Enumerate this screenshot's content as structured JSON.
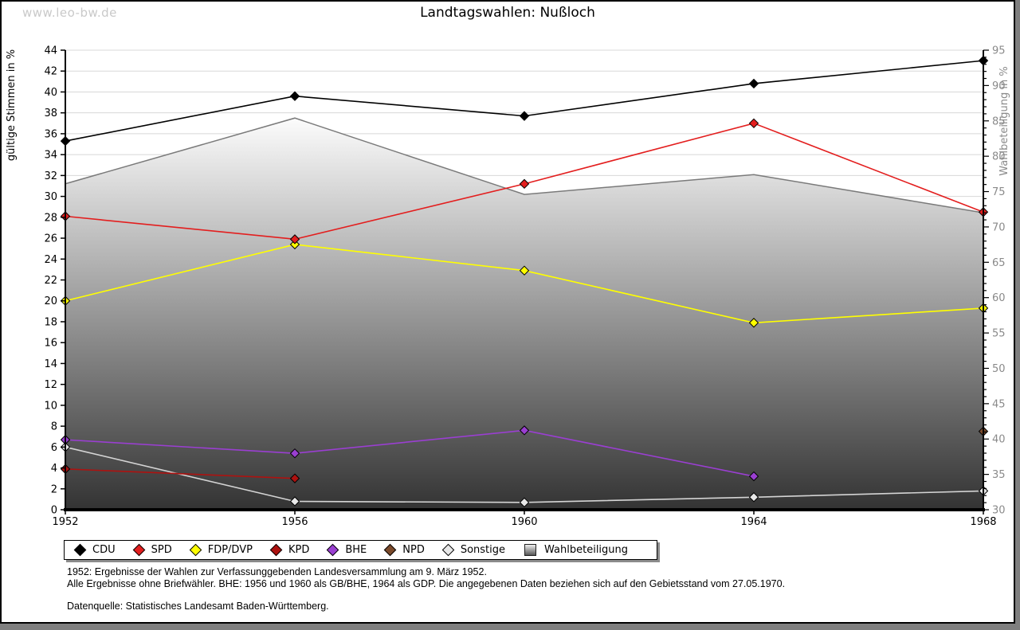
{
  "watermark": "www.leo-bw.de",
  "chart_data": {
    "type": "line",
    "title": "Landtagswahlen: Nußloch",
    "x_categories": [
      "1952",
      "1956",
      "1960",
      "1964",
      "1968"
    ],
    "ylabel_left": "gültige Stimmen in %",
    "ylabel_right": "Wahlbeteiligung in %",
    "ylim_left": [
      0,
      44
    ],
    "ytick_step_left": 2,
    "ylim_right": [
      30,
      95
    ],
    "ytick_step_right": 5,
    "ytick_minor_step_right": 1,
    "grid": true,
    "legend_position": "bottom",
    "series": [
      {
        "name": "CDU",
        "color": "#000000",
        "axis": "left",
        "values": [
          35.3,
          39.6,
          37.7,
          40.8,
          43.0
        ]
      },
      {
        "name": "SPD",
        "color": "#e31e1e",
        "axis": "left",
        "values": [
          28.1,
          25.9,
          31.2,
          37.0,
          28.5
        ]
      },
      {
        "name": "FDP/DVP",
        "color": "#ffff00",
        "axis": "left",
        "values": [
          20.0,
          25.4,
          22.9,
          17.9,
          19.3
        ]
      },
      {
        "name": "KPD",
        "color": "#ad1210",
        "axis": "left",
        "values": [
          3.9,
          3.0,
          null,
          null,
          null
        ]
      },
      {
        "name": "BHE",
        "color": "#9a3fd1",
        "axis": "left",
        "values": [
          6.7,
          5.4,
          7.6,
          3.2,
          null
        ]
      },
      {
        "name": "NPD",
        "color": "#7b4a2b",
        "axis": "left",
        "values": [
          null,
          null,
          null,
          null,
          7.5
        ]
      },
      {
        "name": "Sonstige",
        "color": "#d4d4d4",
        "marker_fill": "#e8e8e8",
        "axis": "left",
        "values": [
          6.0,
          0.8,
          0.7,
          1.2,
          1.8
        ]
      }
    ],
    "area_series": {
      "name": "Wahlbeteiligung",
      "axis": "right",
      "values": [
        76.1,
        85.4,
        74.6,
        77.4,
        72.0
      ],
      "stroke": "#7a7a7a",
      "gradient_top": "#fcfcfc",
      "gradient_bottom": "#333333"
    },
    "colors": {
      "grid": "#d8d8d8",
      "axis": "#000000",
      "right_axis_text": "#8a8a8a",
      "left_axis_text": "#000000"
    }
  },
  "footer": {
    "line1": "1952: Ergebnisse der Wahlen zur Verfassunggebenden Landesversammlung am 9. März 1952.",
    "line2": "Alle Ergebnisse ohne Briefwähler. BHE: 1956 und 1960 als GB/BHE, 1964 als GDP. Die angegebenen Daten beziehen sich auf den Gebietsstand vom 27.05.1970.",
    "line3": "Datenquelle: Statistisches Landesamt Baden-Württemberg."
  }
}
